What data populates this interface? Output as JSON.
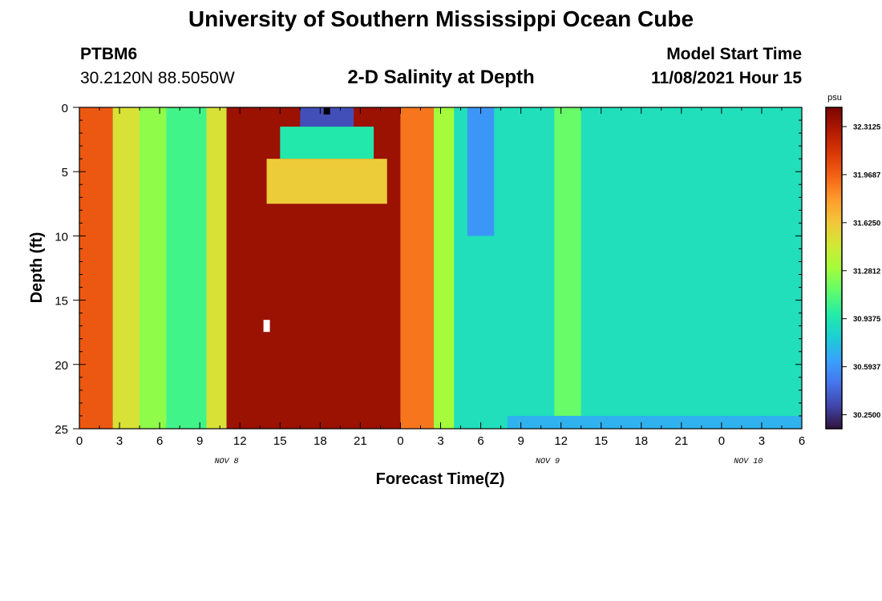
{
  "header": {
    "title": "University of Southern Mississippi Ocean Cube",
    "station_id": "PTBM6",
    "station_coords": "30.2120N  88.5050W",
    "plot_title": "2-D Salinity at Depth",
    "model_start_label": "Model Start Time",
    "model_start_value": "11/08/2021 Hour 15"
  },
  "footer": {
    "title": "University of Southern Mississippi Ocean Cube"
  },
  "chart_data": {
    "type": "heatmap",
    "title": "2-D Salinity at Depth",
    "xlabel": "Forecast Time(Z)",
    "ylabel": "Depth (ft)",
    "x_ticks": [
      "0",
      "3",
      "6",
      "9",
      "12",
      "15",
      "18",
      "21",
      "0",
      "3",
      "6",
      "9",
      "12",
      "15",
      "18",
      "21",
      "0",
      "3",
      "6"
    ],
    "x_range_hours": [
      0,
      54
    ],
    "date_labels": [
      {
        "hour": 11,
        "label": "NOV 8"
      },
      {
        "hour": 35,
        "label": "NOV 9"
      },
      {
        "hour": 50,
        "label": "NOV 10"
      }
    ],
    "y_ticks": [
      0,
      5,
      10,
      15,
      20,
      25
    ],
    "y_range": [
      0,
      25
    ],
    "y_inverted": true,
    "colorbar": {
      "unit": "psu",
      "range": [
        30.15,
        32.45
      ],
      "labels": [
        "32.3125",
        "31.9687",
        "31.6250",
        "31.2812",
        "30.9375",
        "30.5937",
        "30.2500"
      ],
      "label_values": [
        32.3125,
        31.9687,
        31.625,
        31.2812,
        30.9375,
        30.5937,
        30.25
      ],
      "colors": [
        "#30123b",
        "#4145ab",
        "#4675ed",
        "#39a2fc",
        "#1bcfd4",
        "#24eca6",
        "#61fc6c",
        "#a4fc3b",
        "#d1e834",
        "#f3c63a",
        "#fe9b2d",
        "#f36315",
        "#d93806",
        "#b11901",
        "#7a0403"
      ]
    },
    "salinity_field_psu": [
      {
        "hours": [
          0,
          54
        ],
        "depth_ft": [
          0,
          25
        ],
        "value": 30.9
      },
      {
        "hours": [
          0,
          2.5
        ],
        "depth_ft": [
          0,
          25
        ],
        "value": 32.0
      },
      {
        "hours": [
          2.5,
          4.5
        ],
        "depth_ft": [
          0,
          25
        ],
        "value": 31.5
      },
      {
        "hours": [
          4.5,
          6.5
        ],
        "depth_ft": [
          0,
          25
        ],
        "value": 31.25
      },
      {
        "hours": [
          6.5,
          9.5
        ],
        "depth_ft": [
          0,
          25
        ],
        "value": 31.05
      },
      {
        "hours": [
          9.5,
          11
        ],
        "depth_ft": [
          0,
          25
        ],
        "value": 31.5
      },
      {
        "hours": [
          11,
          24
        ],
        "depth_ft": [
          0,
          25
        ],
        "value": 32.35
      },
      {
        "hours": [
          16.5,
          20.5
        ],
        "depth_ft": [
          0,
          1.5
        ],
        "value": 30.35
      },
      {
        "hours": [
          15,
          22
        ],
        "depth_ft": [
          1.5,
          4
        ],
        "value": 30.95
      },
      {
        "hours": [
          14,
          23
        ],
        "depth_ft": [
          4,
          7.5
        ],
        "value": 31.6
      },
      {
        "hours": [
          24,
          26.5
        ],
        "depth_ft": [
          0,
          25
        ],
        "value": 31.9
      },
      {
        "hours": [
          26.5,
          28
        ],
        "depth_ft": [
          0,
          25
        ],
        "value": 31.3
      },
      {
        "hours": [
          29,
          31
        ],
        "depth_ft": [
          0,
          10
        ],
        "value": 30.6
      },
      {
        "hours": [
          35.5,
          37.5
        ],
        "depth_ft": [
          0,
          25
        ],
        "value": 31.15
      },
      {
        "hours": [
          32,
          54
        ],
        "depth_ft": [
          24,
          25
        ],
        "value": 30.7
      }
    ],
    "markers": [
      {
        "hour": 18.5,
        "depth_ft": 0.3,
        "value": 30.15
      },
      {
        "hour": 14,
        "depth_ft": 17,
        "value": "missing"
      }
    ]
  }
}
